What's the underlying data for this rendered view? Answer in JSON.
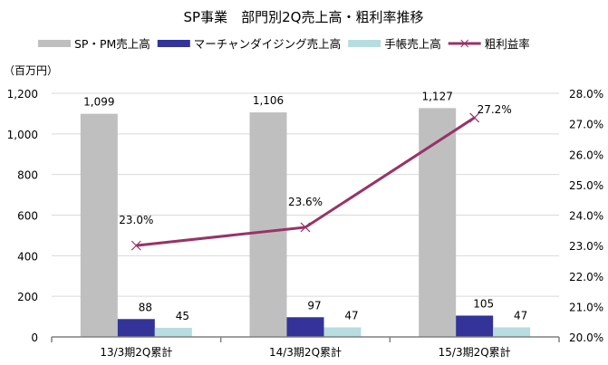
{
  "chart_data": {
    "type": "bar",
    "title": "SP事業　部門別2Q売上高・粗利率推移",
    "unit_label": "（百万円）",
    "categories": [
      "13/3期2Q累計",
      "14/3期2Q累計",
      "15/3期2Q累計"
    ],
    "series": [
      {
        "name": "SP・PM売上高",
        "type": "bar",
        "axis": "left",
        "color": "#bfbfbf",
        "values": [
          1099,
          1106,
          1127
        ],
        "labels": [
          "1,099",
          "1,106",
          "1,127"
        ]
      },
      {
        "name": "マーチャンダイジング売上高",
        "type": "bar",
        "axis": "left",
        "color": "#333399",
        "values": [
          88,
          97,
          105
        ],
        "labels": [
          "88",
          "97",
          "105"
        ]
      },
      {
        "name": "手帳売上高",
        "type": "bar",
        "axis": "left",
        "color": "#b7dde0",
        "values": [
          45,
          47,
          47
        ],
        "labels": [
          "45",
          "47",
          "47"
        ]
      },
      {
        "name": "粗利益率",
        "type": "line",
        "axis": "right",
        "color": "#993366",
        "marker": "x",
        "values": [
          23.0,
          23.6,
          27.2
        ],
        "labels": [
          "23.0%",
          "23.6%",
          "27.2%"
        ]
      }
    ],
    "ylim": [
      0,
      1200
    ],
    "yticks": [
      "0",
      "200",
      "400",
      "600",
      "800",
      "1,000",
      "1,200"
    ],
    "y2lim": [
      20.0,
      28.0
    ],
    "y2ticks": [
      "20.0%",
      "21.0%",
      "22.0%",
      "23.0%",
      "24.0%",
      "25.0%",
      "26.0%",
      "27.0%",
      "28.0%"
    ],
    "grid": true,
    "legend": "top"
  }
}
